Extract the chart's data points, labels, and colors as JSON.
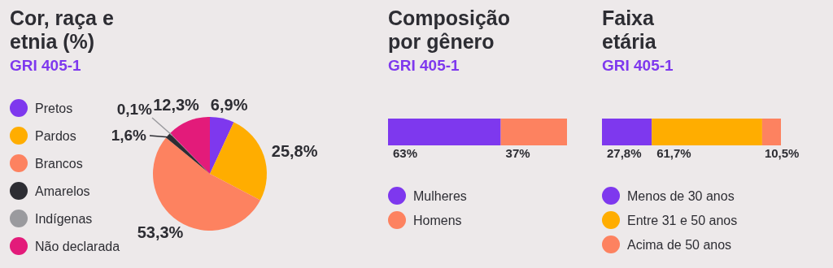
{
  "chart_data": [
    {
      "type": "pie",
      "title": "Cor, raça e etnia (%)",
      "subtitle": "GRI 405-1",
      "categories": [
        "Pretos",
        "Pardos",
        "Brancos",
        "Amarelos",
        "Indígenas",
        "Não declarada"
      ],
      "values": [
        6.9,
        25.8,
        53.3,
        1.6,
        0.1,
        12.3
      ],
      "colors": [
        "#7e38ee",
        "#ffad00",
        "#fd8260",
        "#2d2d33",
        "#9a9a9e",
        "#e31b7a"
      ],
      "value_labels": [
        "6,9%",
        "25,8%",
        "53,3%",
        "1,6%",
        "0,1%",
        "12,3%"
      ],
      "legend": "left"
    },
    {
      "type": "bar",
      "orientation": "horizontal",
      "stacked": true,
      "title": "Composição por gênero",
      "subtitle": "GRI 405-1",
      "categories": [
        null
      ],
      "series": [
        {
          "name": "Mulheres",
          "color": "#7e38ee",
          "values": [
            63
          ],
          "value_labels": [
            "63%"
          ]
        },
        {
          "name": "Homens",
          "color": "#fd8260",
          "values": [
            37
          ],
          "value_labels": [
            "37%"
          ]
        }
      ],
      "legend": "bottom"
    },
    {
      "type": "bar",
      "orientation": "horizontal",
      "stacked": true,
      "title": "Faixa etária",
      "subtitle": "GRI 405-1",
      "categories": [
        null
      ],
      "series": [
        {
          "name": "Menos de 30 anos",
          "color": "#7e38ee",
          "values": [
            27.8
          ],
          "value_labels": [
            "27,8%"
          ]
        },
        {
          "name": "Entre 31 e 50 anos",
          "color": "#ffad00",
          "values": [
            61.7
          ],
          "value_labels": [
            "61,7%"
          ]
        },
        {
          "name": "Acima de 50 anos",
          "color": "#fd8260",
          "values": [
            10.5
          ],
          "value_labels": [
            "10,5%"
          ]
        }
      ],
      "legend": "bottom"
    }
  ]
}
